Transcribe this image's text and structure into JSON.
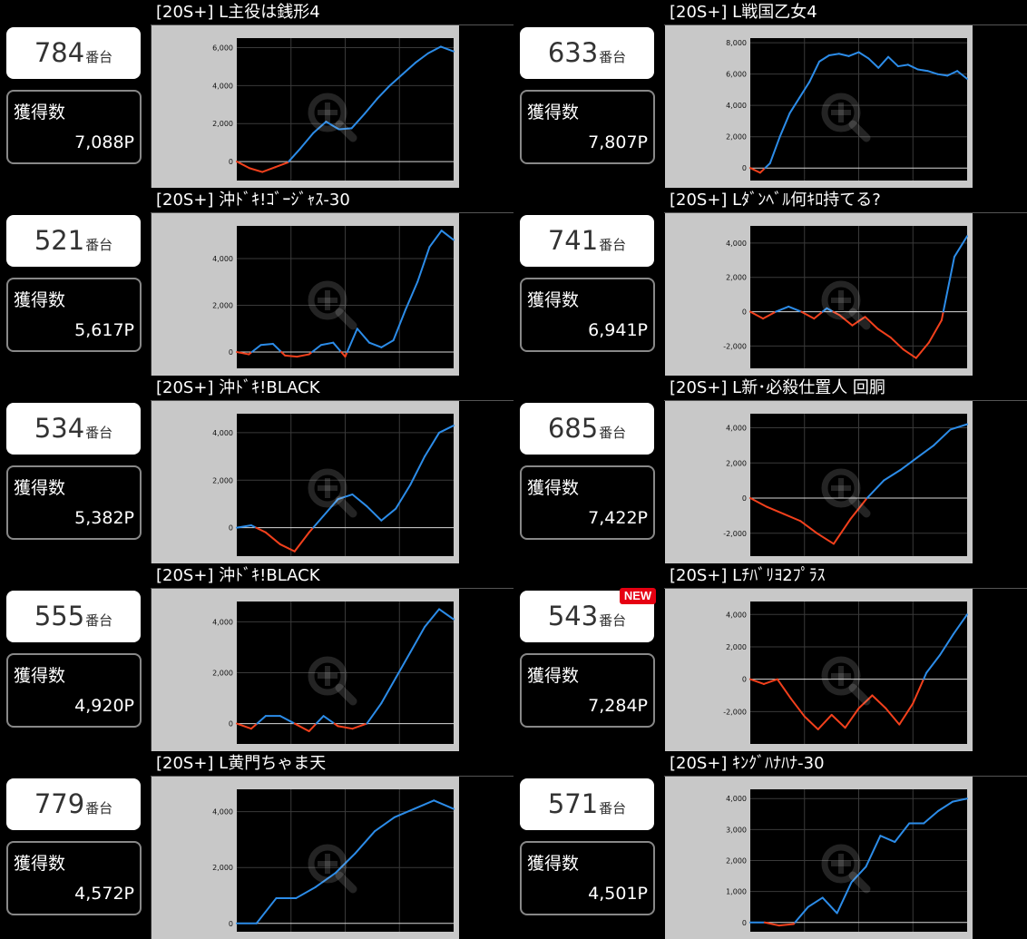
{
  "units": [
    {
      "title": "[20S+] L主役は銭形4",
      "machine_no": "784",
      "machine_suffix": "番台",
      "earn_label": "獲得数",
      "earn_value": "7,088P",
      "chart_data": {
        "type": "line",
        "y_ticks": [
          "0",
          "2,000",
          "4,000",
          "6,000"
        ],
        "ylim": [
          -1000,
          6500
        ],
        "values": [
          0,
          -350,
          -550,
          -300,
          -50,
          700,
          1500,
          2100,
          1700,
          1750,
          2500,
          3300,
          4000,
          4600,
          5200,
          5700,
          6050,
          5800
        ]
      }
    },
    {
      "title": "[20S+] L戦国乙女4",
      "machine_no": "633",
      "machine_suffix": "番台",
      "earn_label": "獲得数",
      "earn_value": "7,807P",
      "chart_data": {
        "type": "line",
        "y_ticks": [
          "0",
          "2,000",
          "4,000",
          "6,000",
          "8,000"
        ],
        "ylim": [
          -800,
          8300
        ],
        "values": [
          0,
          -300,
          300,
          2000,
          3500,
          4500,
          5500,
          6800,
          7200,
          7300,
          7150,
          7400,
          7000,
          6400,
          7100,
          6500,
          6600,
          6300,
          6200,
          6000,
          5900,
          6200,
          5700
        ]
      }
    },
    {
      "title": "[20S+] 沖ﾄﾞｷ!ｺﾞｰｼﾞｬｽ-30",
      "machine_no": "521",
      "machine_suffix": "番台",
      "earn_label": "獲得数",
      "earn_value": "5,617P",
      "chart_data": {
        "type": "line",
        "y_ticks": [
          "0",
          "2,000",
          "4,000"
        ],
        "ylim": [
          -700,
          5400
        ],
        "values": [
          0,
          -100,
          300,
          350,
          -150,
          -200,
          -100,
          300,
          400,
          -200,
          1000,
          400,
          200,
          500,
          1800,
          3000,
          4500,
          5200,
          4800
        ]
      }
    },
    {
      "title": "[20S+] Lﾀﾞﾝﾍﾞﾙ何ｷﾛ持てる?",
      "machine_no": "741",
      "machine_suffix": "番台",
      "earn_label": "獲得数",
      "earn_value": "6,941P",
      "chart_data": {
        "type": "line",
        "y_ticks": [
          "-2,000",
          "0",
          "2,000",
          "4,000"
        ],
        "ylim": [
          -3300,
          5000
        ],
        "values": [
          0,
          -400,
          0,
          300,
          0,
          -400,
          200,
          -200,
          -800,
          -300,
          -1000,
          -1500,
          -2200,
          -2700,
          -1800,
          -500,
          3200,
          4400
        ]
      }
    },
    {
      "title": "[20S+] 沖ﾄﾞｷ!BLACK",
      "machine_no": "534",
      "machine_suffix": "番台",
      "earn_label": "獲得数",
      "earn_value": "5,382P",
      "chart_data": {
        "type": "line",
        "y_ticks": [
          "0",
          "2,000",
          "4,000"
        ],
        "ylim": [
          -1200,
          4800
        ],
        "values": [
          0,
          100,
          -200,
          -700,
          -1000,
          -200,
          500,
          1200,
          1400,
          900,
          300,
          800,
          1800,
          3000,
          4000,
          4300
        ]
      }
    },
    {
      "title": "[20S+] L新･必殺仕置人 回胴",
      "machine_no": "685",
      "machine_suffix": "番台",
      "earn_label": "獲得数",
      "earn_value": "7,422P",
      "chart_data": {
        "type": "line",
        "y_ticks": [
          "-2,000",
          "0",
          "2,000",
          "4,000"
        ],
        "ylim": [
          -3300,
          4800
        ],
        "values": [
          0,
          -500,
          -900,
          -1300,
          -2000,
          -2600,
          -1200,
          0,
          1000,
          1600,
          2300,
          3000,
          3900,
          4200
        ]
      }
    },
    {
      "title": "[20S+] 沖ﾄﾞｷ!BLACK",
      "machine_no": "555",
      "machine_suffix": "番台",
      "earn_label": "獲得数",
      "earn_value": "4,920P",
      "chart_data": {
        "type": "line",
        "y_ticks": [
          "0",
          "2,000",
          "4,000"
        ],
        "ylim": [
          -800,
          4800
        ],
        "values": [
          0,
          -200,
          300,
          300,
          0,
          -300,
          300,
          -100,
          -200,
          0,
          800,
          1800,
          2800,
          3800,
          4500,
          4100
        ]
      }
    },
    {
      "title": "[20S+] Lﾁﾊﾞﾘﾖ2ﾌﾟﾗｽ",
      "machine_no": "543",
      "machine_suffix": "番台",
      "earn_label": "獲得数",
      "earn_value": "7,284P",
      "badge": "NEW",
      "chart_data": {
        "type": "line",
        "y_ticks": [
          "-2,000",
          "0",
          "2,000",
          "4,000"
        ],
        "ylim": [
          -4000,
          4800
        ],
        "values": [
          0,
          -300,
          0,
          -1200,
          -2300,
          -3100,
          -2200,
          -3000,
          -1800,
          -1000,
          -1800,
          -2800,
          -1500,
          400,
          1500,
          2800,
          4000
        ]
      }
    },
    {
      "title": "[20S+] L黄門ちゃま天",
      "machine_no": "779",
      "machine_suffix": "番台",
      "earn_label": "獲得数",
      "earn_value": "4,572P",
      "chart_data": {
        "type": "line",
        "y_ticks": [
          "0",
          "2,000",
          "4,000"
        ],
        "ylim": [
          -300,
          4800
        ],
        "values": [
          0,
          0,
          900,
          900,
          1300,
          1800,
          2500,
          3300,
          3800,
          4100,
          4400,
          4100
        ]
      }
    },
    {
      "title": "[20S+] ｷﾝｸﾞﾊﾅﾊﾅ-30",
      "machine_no": "571",
      "machine_suffix": "番台",
      "earn_label": "獲得数",
      "earn_value": "4,501P",
      "chart_data": {
        "type": "line",
        "y_ticks": [
          "0",
          "1,000",
          "2,000",
          "3,000",
          "4,000"
        ],
        "ylim": [
          -300,
          4300
        ],
        "values": [
          0,
          0,
          -100,
          -50,
          500,
          800,
          300,
          1300,
          1800,
          2800,
          2600,
          3200,
          3200,
          3600,
          3900,
          4000
        ]
      }
    }
  ],
  "colors": {
    "positive": "#2c8ce8",
    "negative": "#f2401c",
    "plot_bg": "#000000",
    "frame": "#c8c8c8",
    "grid": "#3a3a3a"
  }
}
